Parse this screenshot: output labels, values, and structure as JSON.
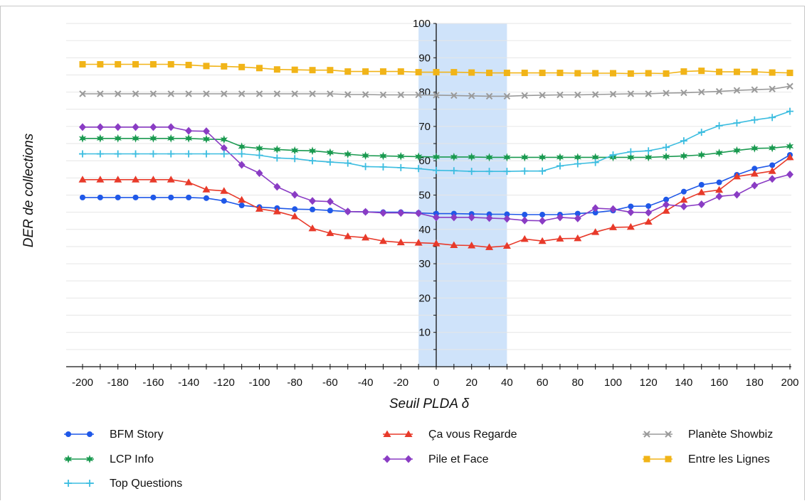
{
  "chart_data": {
    "type": "line",
    "xlabel": "Seuil PLDA δ",
    "ylabel": "DER de collections",
    "xlim": [
      -200,
      200
    ],
    "ylim": [
      0,
      100
    ],
    "x_ticks": [
      -200,
      -180,
      -160,
      -140,
      -120,
      -100,
      -80,
      -60,
      -40,
      -20,
      0,
      20,
      40,
      60,
      80,
      100,
      120,
      140,
      160,
      180,
      200
    ],
    "y_ticks": [
      10,
      20,
      30,
      40,
      50,
      60,
      70,
      80,
      90,
      100
    ],
    "grid": "horizontal",
    "highlight": {
      "x_range": [
        -10,
        40
      ],
      "color": "#cfe3fa"
    },
    "legend_position": "bottom",
    "x": [
      -200,
      -190,
      -180,
      -170,
      -160,
      -150,
      -140,
      -130,
      -120,
      -110,
      -100,
      -90,
      -80,
      -70,
      -60,
      -50,
      -40,
      -30,
      -20,
      -10,
      0,
      10,
      20,
      30,
      40,
      50,
      60,
      70,
      80,
      90,
      100,
      110,
      120,
      130,
      140,
      150,
      160,
      170,
      180,
      190,
      200
    ],
    "series": [
      {
        "name": "BFM Story",
        "color": "#1f58e8",
        "marker": "circle",
        "values": [
          49.3,
          49.3,
          49.3,
          49.3,
          49.3,
          49.3,
          49.3,
          49.1,
          48.3,
          47.0,
          46.5,
          46.2,
          45.9,
          45.8,
          45.5,
          45.2,
          45.1,
          45.0,
          45.0,
          44.8,
          44.6,
          44.6,
          44.5,
          44.4,
          44.4,
          44.3,
          44.3,
          44.3,
          44.6,
          44.9,
          45.5,
          46.7,
          46.8,
          48.7,
          51.0,
          53.0,
          53.7,
          55.9,
          57.7,
          58.7,
          61.7
        ]
      },
      {
        "name": "Ça vous Regarde",
        "color": "#e83a2a",
        "marker": "triangle",
        "values": [
          54.5,
          54.5,
          54.5,
          54.5,
          54.5,
          54.5,
          53.7,
          51.6,
          51.2,
          48.6,
          46.0,
          45.2,
          43.8,
          40.3,
          38.9,
          38.0,
          37.6,
          36.6,
          36.2,
          36.1,
          35.9,
          35.4,
          35.3,
          34.8,
          35.2,
          37.2,
          36.6,
          37.3,
          37.4,
          39.2,
          40.6,
          40.7,
          42.2,
          45.4,
          48.6,
          50.8,
          51.5,
          55.4,
          56.2,
          57.0,
          61.0
        ]
      },
      {
        "name": "Planète Showbiz",
        "color": "#9a9a9a",
        "marker": "cross",
        "values": [
          79.5,
          79.5,
          79.5,
          79.5,
          79.5,
          79.5,
          79.5,
          79.5,
          79.5,
          79.5,
          79.5,
          79.5,
          79.5,
          79.5,
          79.5,
          79.3,
          79.3,
          79.2,
          79.2,
          79.2,
          79.1,
          79.0,
          78.9,
          78.8,
          78.8,
          79.0,
          79.1,
          79.2,
          79.2,
          79.3,
          79.4,
          79.5,
          79.5,
          79.7,
          79.8,
          80.0,
          80.2,
          80.5,
          80.7,
          80.9,
          81.7
        ]
      },
      {
        "name": "LCP Info",
        "color": "#1a9a50",
        "marker": "star",
        "values": [
          66.5,
          66.5,
          66.5,
          66.5,
          66.5,
          66.5,
          66.5,
          66.3,
          66.2,
          64.1,
          63.6,
          63.3,
          63.0,
          62.9,
          62.4,
          61.9,
          61.5,
          61.4,
          61.3,
          61.2,
          61.1,
          61.1,
          61.1,
          61.0,
          61.0,
          61.0,
          61.0,
          61.0,
          61.0,
          61.0,
          61.0,
          61.0,
          61.0,
          61.2,
          61.4,
          61.7,
          62.3,
          63.0,
          63.6,
          63.7,
          64.2
        ]
      },
      {
        "name": "Pile et Face",
        "color": "#8a3cc4",
        "marker": "diamond",
        "values": [
          69.8,
          69.8,
          69.8,
          69.8,
          69.8,
          69.8,
          68.7,
          68.6,
          63.7,
          58.8,
          56.4,
          52.4,
          50.1,
          48.3,
          48.1,
          45.2,
          45.1,
          44.8,
          44.8,
          44.7,
          43.5,
          43.5,
          43.5,
          43.3,
          43.1,
          42.6,
          42.5,
          43.5,
          43.2,
          46.2,
          45.9,
          45.0,
          44.9,
          47.2,
          46.7,
          47.3,
          49.6,
          50.1,
          52.8,
          54.7,
          56.0
        ]
      },
      {
        "name": "Entre les Lignes",
        "color": "#f1b418",
        "marker": "square",
        "values": [
          88.1,
          88.1,
          88.1,
          88.1,
          88.1,
          88.1,
          87.9,
          87.6,
          87.5,
          87.3,
          87.0,
          86.6,
          86.5,
          86.4,
          86.4,
          86.0,
          86.0,
          86.0,
          86.0,
          85.8,
          85.8,
          85.8,
          85.7,
          85.6,
          85.6,
          85.6,
          85.6,
          85.6,
          85.5,
          85.5,
          85.5,
          85.4,
          85.5,
          85.4,
          86.0,
          86.2,
          85.9,
          85.9,
          85.9,
          85.7,
          85.6
        ]
      },
      {
        "name": "Top Questions",
        "color": "#3cbde0",
        "marker": "plus",
        "values": [
          62.0,
          62.0,
          62.0,
          62.0,
          62.0,
          62.0,
          62.0,
          62.0,
          62.0,
          62.0,
          61.6,
          60.8,
          60.6,
          60.0,
          59.6,
          59.3,
          58.3,
          58.2,
          58.0,
          57.7,
          57.2,
          57.1,
          56.9,
          56.9,
          56.9,
          57.0,
          57.0,
          58.5,
          59.1,
          59.5,
          61.7,
          62.6,
          62.9,
          63.9,
          65.8,
          68.3,
          70.2,
          71.0,
          71.9,
          72.6,
          74.4
        ]
      }
    ]
  }
}
